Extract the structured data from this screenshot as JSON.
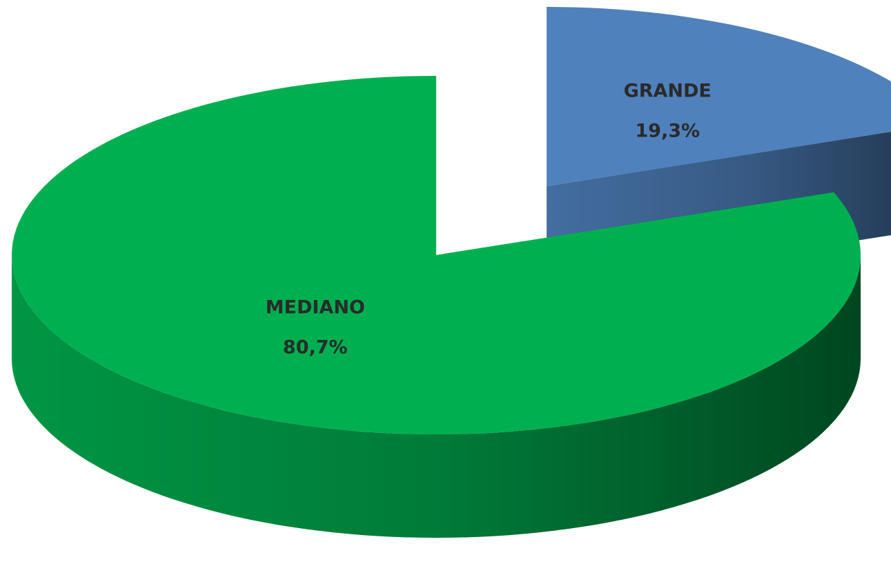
{
  "chart_data": {
    "type": "pie",
    "categories": [
      "GRANDE",
      "MEDIANO"
    ],
    "values": [
      19.3,
      80.7
    ],
    "value_labels": [
      "19,3%",
      "80,7%"
    ],
    "colors": [
      "#4f81bd",
      "#00b050"
    ]
  }
}
